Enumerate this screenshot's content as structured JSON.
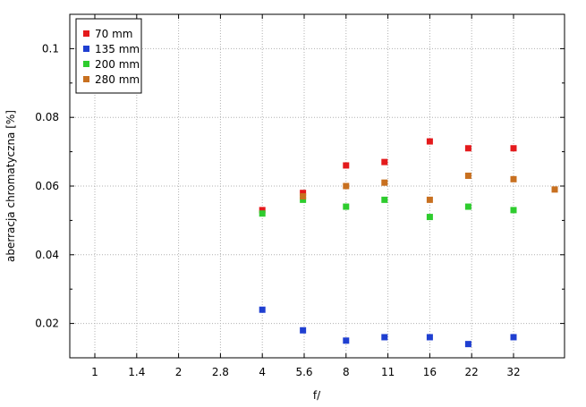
{
  "chart_data": {
    "type": "scatter",
    "title": "",
    "xlabel": "f/",
    "ylabel": "aberracja chromatyczna [%]",
    "x_categories": [
      "1",
      "1.4",
      "2",
      "2.8",
      "4",
      "5.6",
      "8",
      "11",
      "16",
      "22",
      "32"
    ],
    "x_scale": "log2-stops",
    "ylim": [
      0.01,
      0.11
    ],
    "y_ticks": [
      0.02,
      0.04,
      0.06,
      0.08,
      0.1
    ],
    "y_tick_labels": [
      "0.02",
      "0.04",
      "0.06",
      "0.08",
      "0.1"
    ],
    "grid": true,
    "legend_position": "top-left",
    "series": [
      {
        "name": "70 mm",
        "color": "#e41a1c",
        "points": [
          [
            4,
            0.053
          ],
          [
            5.6,
            0.058
          ],
          [
            8,
            0.066
          ],
          [
            11,
            0.067
          ],
          [
            16,
            0.073
          ],
          [
            22,
            0.071
          ],
          [
            32,
            0.071
          ]
        ]
      },
      {
        "name": "135 mm",
        "color": "#1f3fd1",
        "points": [
          [
            4,
            0.024
          ],
          [
            5.6,
            0.018
          ],
          [
            8,
            0.015
          ],
          [
            11,
            0.016
          ],
          [
            16,
            0.016
          ],
          [
            22,
            0.014
          ],
          [
            32,
            0.016
          ]
        ]
      },
      {
        "name": "200 mm",
        "color": "#2ecc2e",
        "points": [
          [
            4,
            0.052
          ],
          [
            5.6,
            0.056
          ],
          [
            8,
            0.054
          ],
          [
            11,
            0.056
          ],
          [
            16,
            0.051
          ],
          [
            22,
            0.054
          ],
          [
            32,
            0.053
          ]
        ]
      },
      {
        "name": "280 mm",
        "color": "#c87020",
        "points": [
          [
            5.6,
            0.057
          ],
          [
            8,
            0.06
          ],
          [
            11,
            0.061
          ],
          [
            16,
            0.056
          ],
          [
            22,
            0.063
          ],
          [
            32,
            0.062
          ],
          [
            45,
            0.059
          ]
        ]
      }
    ]
  }
}
